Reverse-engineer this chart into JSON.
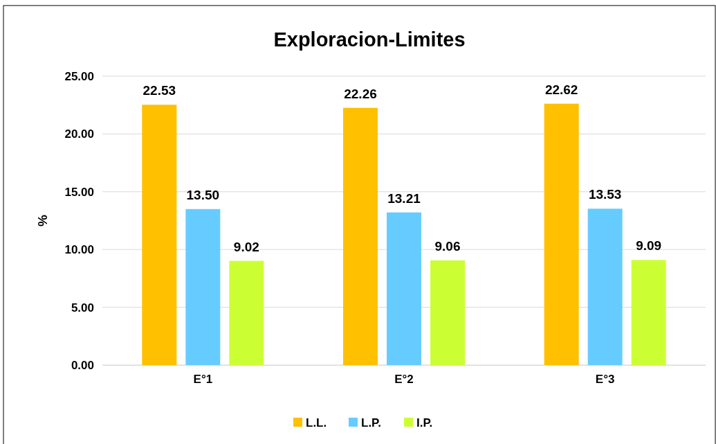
{
  "chart_data": {
    "type": "bar",
    "title": "Exploracion-Limites",
    "ylabel": "%",
    "categories": [
      "E°1",
      "E°2",
      "E°3"
    ],
    "series": [
      {
        "name": "L.L.",
        "color": "#ffc000",
        "values": [
          22.53,
          22.26,
          22.62
        ],
        "value_labels": [
          "22.53",
          "22.26",
          "22.62"
        ]
      },
      {
        "name": "L.P.",
        "color": "#66ccff",
        "values": [
          13.5,
          13.21,
          13.53
        ],
        "value_labels": [
          "13.50",
          "13.21",
          "13.53"
        ]
      },
      {
        "name": "I.P.",
        "color": "#ccff33",
        "values": [
          9.02,
          9.06,
          9.09
        ],
        "value_labels": [
          "9.02",
          "9.06",
          "9.09"
        ]
      }
    ],
    "ylim": [
      0,
      25
    ],
    "yticks": [
      {
        "value": 0,
        "label": "0.00"
      },
      {
        "value": 5,
        "label": "5.00"
      },
      {
        "value": 10,
        "label": "10.00"
      },
      {
        "value": 15,
        "label": "15.00"
      },
      {
        "value": 20,
        "label": "20.00"
      },
      {
        "value": 25,
        "label": "25.00"
      }
    ],
    "grid": "y",
    "legend": "bottom"
  }
}
